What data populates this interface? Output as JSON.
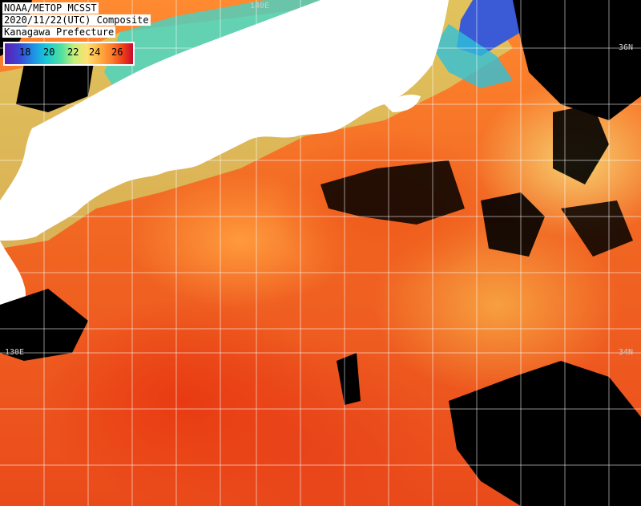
{
  "header": {
    "line1": "NOAA/METOP MCSST",
    "line2": "2020/11/22(UTC) Composite",
    "line3": "Kanagawa Prefecture"
  },
  "legend": {
    "ticks": [
      "18",
      "20",
      "22",
      "24",
      "26"
    ],
    "colors": [
      "#5a1fb5",
      "#1f8fe6",
      "#4ee0a0",
      "#ffe070",
      "#ff7a2a",
      "#c80a32"
    ]
  },
  "grid_labels": {
    "lat_top": "36N",
    "lat_mid": "34N",
    "lon_top": "140E",
    "lon_left": "130E"
  },
  "land_color": "#ffffff",
  "cloud_color": "#000000"
}
